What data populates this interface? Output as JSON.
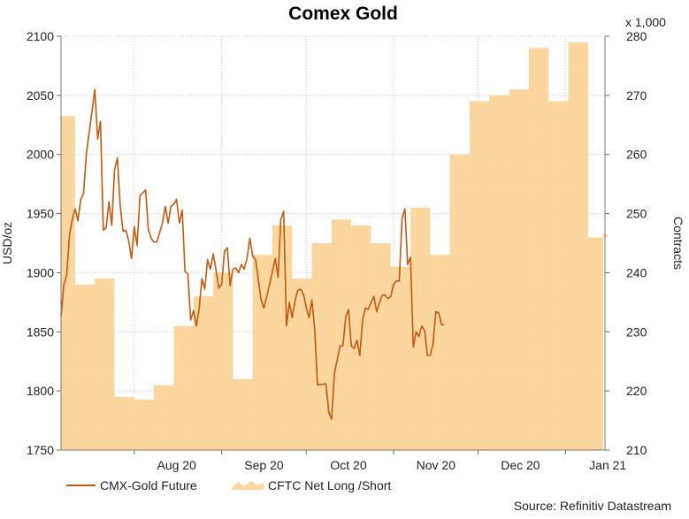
{
  "chart_data": {
    "type": "line",
    "title": "Comex Gold",
    "source": "Source: Refinitiv Datastream",
    "y_left": {
      "label": "USD/oz",
      "range": [
        1750,
        2100
      ],
      "ticks": [
        1750,
        1800,
        1850,
        1900,
        1950,
        2000,
        2050,
        2100
      ]
    },
    "y_right": {
      "label": "Contracts",
      "multiplier_label": "x 1,000",
      "range": [
        210,
        280
      ],
      "ticks": [
        210,
        220,
        230,
        240,
        250,
        260,
        270,
        280
      ]
    },
    "x_axis": {
      "start": "2020-07-06",
      "end": "2021-01-15",
      "tick_labels": [
        "Aug 20",
        "Sep 20",
        "Oct 20",
        "Nov 20",
        "Dec 20",
        "Jan 21"
      ],
      "tick_dates": [
        "2020-08-01",
        "2020-09-01",
        "2020-10-01",
        "2020-11-01",
        "2020-12-01",
        "2021-01-01"
      ]
    },
    "grid": true,
    "legend": {
      "placement": "bottom-left",
      "entries": [
        "CMX-Gold Future",
        "CFTC Net Long /Short"
      ]
    },
    "series": [
      {
        "name": "CMX-Gold Future",
        "axis": "left",
        "style": "line",
        "color": "#c4590f",
        "points": [
          [
            "2020-07-06",
            1863
          ],
          [
            "2020-07-07",
            1890
          ],
          [
            "2020-07-08",
            1898
          ],
          [
            "2020-07-09",
            1932
          ],
          [
            "2020-07-10",
            1945
          ],
          [
            "2020-07-11",
            1954
          ],
          [
            "2020-07-12",
            1944
          ],
          [
            "2020-07-13",
            1962
          ],
          [
            "2020-07-14",
            1967
          ],
          [
            "2020-07-15",
            2001
          ],
          [
            "2020-07-17",
            2037
          ],
          [
            "2020-07-18",
            2055
          ],
          [
            "2020-07-19",
            2013
          ],
          [
            "2020-07-20",
            2028
          ],
          [
            "2020-07-21",
            1936
          ],
          [
            "2020-07-22",
            1938
          ],
          [
            "2020-07-23",
            1960
          ],
          [
            "2020-07-24",
            1940
          ],
          [
            "2020-07-25",
            1987
          ],
          [
            "2020-07-26",
            1997
          ],
          [
            "2020-07-27",
            1957
          ],
          [
            "2020-07-28",
            1935
          ],
          [
            "2020-07-29",
            1936
          ],
          [
            "2020-07-30",
            1927
          ],
          [
            "2020-07-31",
            1912
          ],
          [
            "2020-08-01",
            1939
          ],
          [
            "2020-08-02",
            1923
          ],
          [
            "2020-08-03",
            1965
          ],
          [
            "2020-08-05",
            1970
          ],
          [
            "2020-08-06",
            1936
          ],
          [
            "2020-08-07",
            1929
          ],
          [
            "2020-08-08",
            1926
          ],
          [
            "2020-08-09",
            1926
          ],
          [
            "2020-08-11",
            1942
          ],
          [
            "2020-08-12",
            1956
          ],
          [
            "2020-08-13",
            1942
          ],
          [
            "2020-08-14",
            1956
          ],
          [
            "2020-08-15",
            1958
          ],
          [
            "2020-08-16",
            1962
          ],
          [
            "2020-08-17",
            1942
          ],
          [
            "2020-08-18",
            1953
          ],
          [
            "2020-08-19",
            1901
          ],
          [
            "2020-08-20",
            1899
          ],
          [
            "2020-08-21",
            1860
          ],
          [
            "2020-08-22",
            1868
          ],
          [
            "2020-08-23",
            1855
          ],
          [
            "2020-08-24",
            1869
          ],
          [
            "2020-08-25",
            1895
          ],
          [
            "2020-08-26",
            1886
          ],
          [
            "2020-08-27",
            1911
          ],
          [
            "2020-08-28",
            1903
          ],
          [
            "2020-08-29",
            1916
          ],
          [
            "2020-08-30",
            1902
          ],
          [
            "2020-08-31",
            1887
          ],
          [
            "2020-09-01",
            1890
          ],
          [
            "2020-09-02",
            1918
          ],
          [
            "2020-09-03",
            1921
          ],
          [
            "2020-09-04",
            1889
          ],
          [
            "2020-09-05",
            1903
          ],
          [
            "2020-09-06",
            1904
          ],
          [
            "2020-09-07",
            1900
          ],
          [
            "2020-09-08",
            1907
          ],
          [
            "2020-09-09",
            1903
          ],
          [
            "2020-09-10",
            1912
          ],
          [
            "2020-09-11",
            1929
          ],
          [
            "2020-09-12",
            1914
          ],
          [
            "2020-09-13",
            1911
          ],
          [
            "2020-09-14",
            1894
          ],
          [
            "2020-09-15",
            1877
          ],
          [
            "2020-09-16",
            1870
          ],
          [
            "2020-09-18",
            1890
          ],
          [
            "2020-09-20",
            1912
          ],
          [
            "2020-09-21",
            1896
          ],
          [
            "2020-09-22",
            1945
          ],
          [
            "2020-09-23",
            1952
          ],
          [
            "2020-09-24",
            1855
          ],
          [
            "2020-09-25",
            1875
          ],
          [
            "2020-09-26",
            1862
          ],
          [
            "2020-09-27",
            1876
          ],
          [
            "2020-09-28",
            1885
          ],
          [
            "2020-09-29",
            1886
          ],
          [
            "2020-09-30",
            1882
          ],
          [
            "2020-10-01",
            1871
          ],
          [
            "2020-10-02",
            1862
          ],
          [
            "2020-10-03",
            1877
          ],
          [
            "2020-10-04",
            1852
          ],
          [
            "2020-10-05",
            1805
          ],
          [
            "2020-10-08",
            1806
          ],
          [
            "2020-10-09",
            1782
          ],
          [
            "2020-10-10",
            1776
          ],
          [
            "2020-10-11",
            1815
          ],
          [
            "2020-10-13",
            1838
          ],
          [
            "2020-10-14",
            1838
          ],
          [
            "2020-10-15",
            1862
          ],
          [
            "2020-10-16",
            1869
          ],
          [
            "2020-10-17",
            1838
          ],
          [
            "2020-10-18",
            1836
          ],
          [
            "2020-10-19",
            1843
          ],
          [
            "2020-10-20",
            1830
          ],
          [
            "2020-10-21",
            1860
          ],
          [
            "2020-10-22",
            1870
          ],
          [
            "2020-10-23",
            1869
          ],
          [
            "2020-10-25",
            1880
          ],
          [
            "2020-10-26",
            1867
          ],
          [
            "2020-10-27",
            1875
          ],
          [
            "2020-10-28",
            1881
          ],
          [
            "2020-10-29",
            1881
          ],
          [
            "2020-10-30",
            1878
          ],
          [
            "2020-10-31",
            1880
          ],
          [
            "2020-11-01",
            1890
          ],
          [
            "2020-11-02",
            1893
          ],
          [
            "2020-11-03",
            1893
          ],
          [
            "2020-11-04",
            1946
          ],
          [
            "2020-11-05",
            1954
          ],
          [
            "2020-11-06",
            1907
          ],
          [
            "2020-11-07",
            1913
          ],
          [
            "2020-11-08",
            1837
          ],
          [
            "2020-11-09",
            1850
          ],
          [
            "2020-11-10",
            1846
          ],
          [
            "2020-11-11",
            1855
          ],
          [
            "2020-11-12",
            1851
          ],
          [
            "2020-11-13",
            1830
          ],
          [
            "2020-11-14",
            1830
          ],
          [
            "2020-11-15",
            1840
          ],
          [
            "2020-11-16",
            1867
          ],
          [
            "2020-11-17",
            1866
          ],
          [
            "2020-11-18",
            1856
          ],
          [
            "2020-11-19",
            1856
          ]
        ]
      },
      {
        "name": "CFTC Net Long /Short",
        "axis": "right",
        "style": "area",
        "color": "#fbd59c",
        "steps": [
          [
            "2020-07-06",
            266.5
          ],
          [
            "2020-07-11",
            238
          ],
          [
            "2020-07-18",
            239
          ],
          [
            "2020-07-25",
            219
          ],
          [
            "2020-08-01",
            218.5
          ],
          [
            "2020-08-08",
            221
          ],
          [
            "2020-08-15",
            231
          ],
          [
            "2020-08-22",
            236
          ],
          [
            "2020-08-29",
            240
          ],
          [
            "2020-09-05",
            222
          ],
          [
            "2020-09-12",
            243
          ],
          [
            "2020-09-19",
            248
          ],
          [
            "2020-09-26",
            239
          ],
          [
            "2020-10-03",
            245
          ],
          [
            "2020-10-10",
            249
          ],
          [
            "2020-10-17",
            248
          ],
          [
            "2020-10-24",
            245
          ],
          [
            "2020-10-31",
            241
          ],
          [
            "2020-11-07",
            251
          ],
          [
            "2020-11-14",
            243
          ],
          [
            "2020-11-21",
            260
          ],
          [
            "2020-11-28",
            269
          ],
          [
            "2020-12-05",
            270
          ],
          [
            "2020-12-12",
            271
          ],
          [
            "2020-12-19",
            278
          ],
          [
            "2020-12-26",
            269
          ],
          [
            "2021-01-02",
            279
          ],
          [
            "2021-01-09",
            246
          ],
          [
            "2021-01-16",
            246.5
          ]
        ]
      }
    ]
  }
}
